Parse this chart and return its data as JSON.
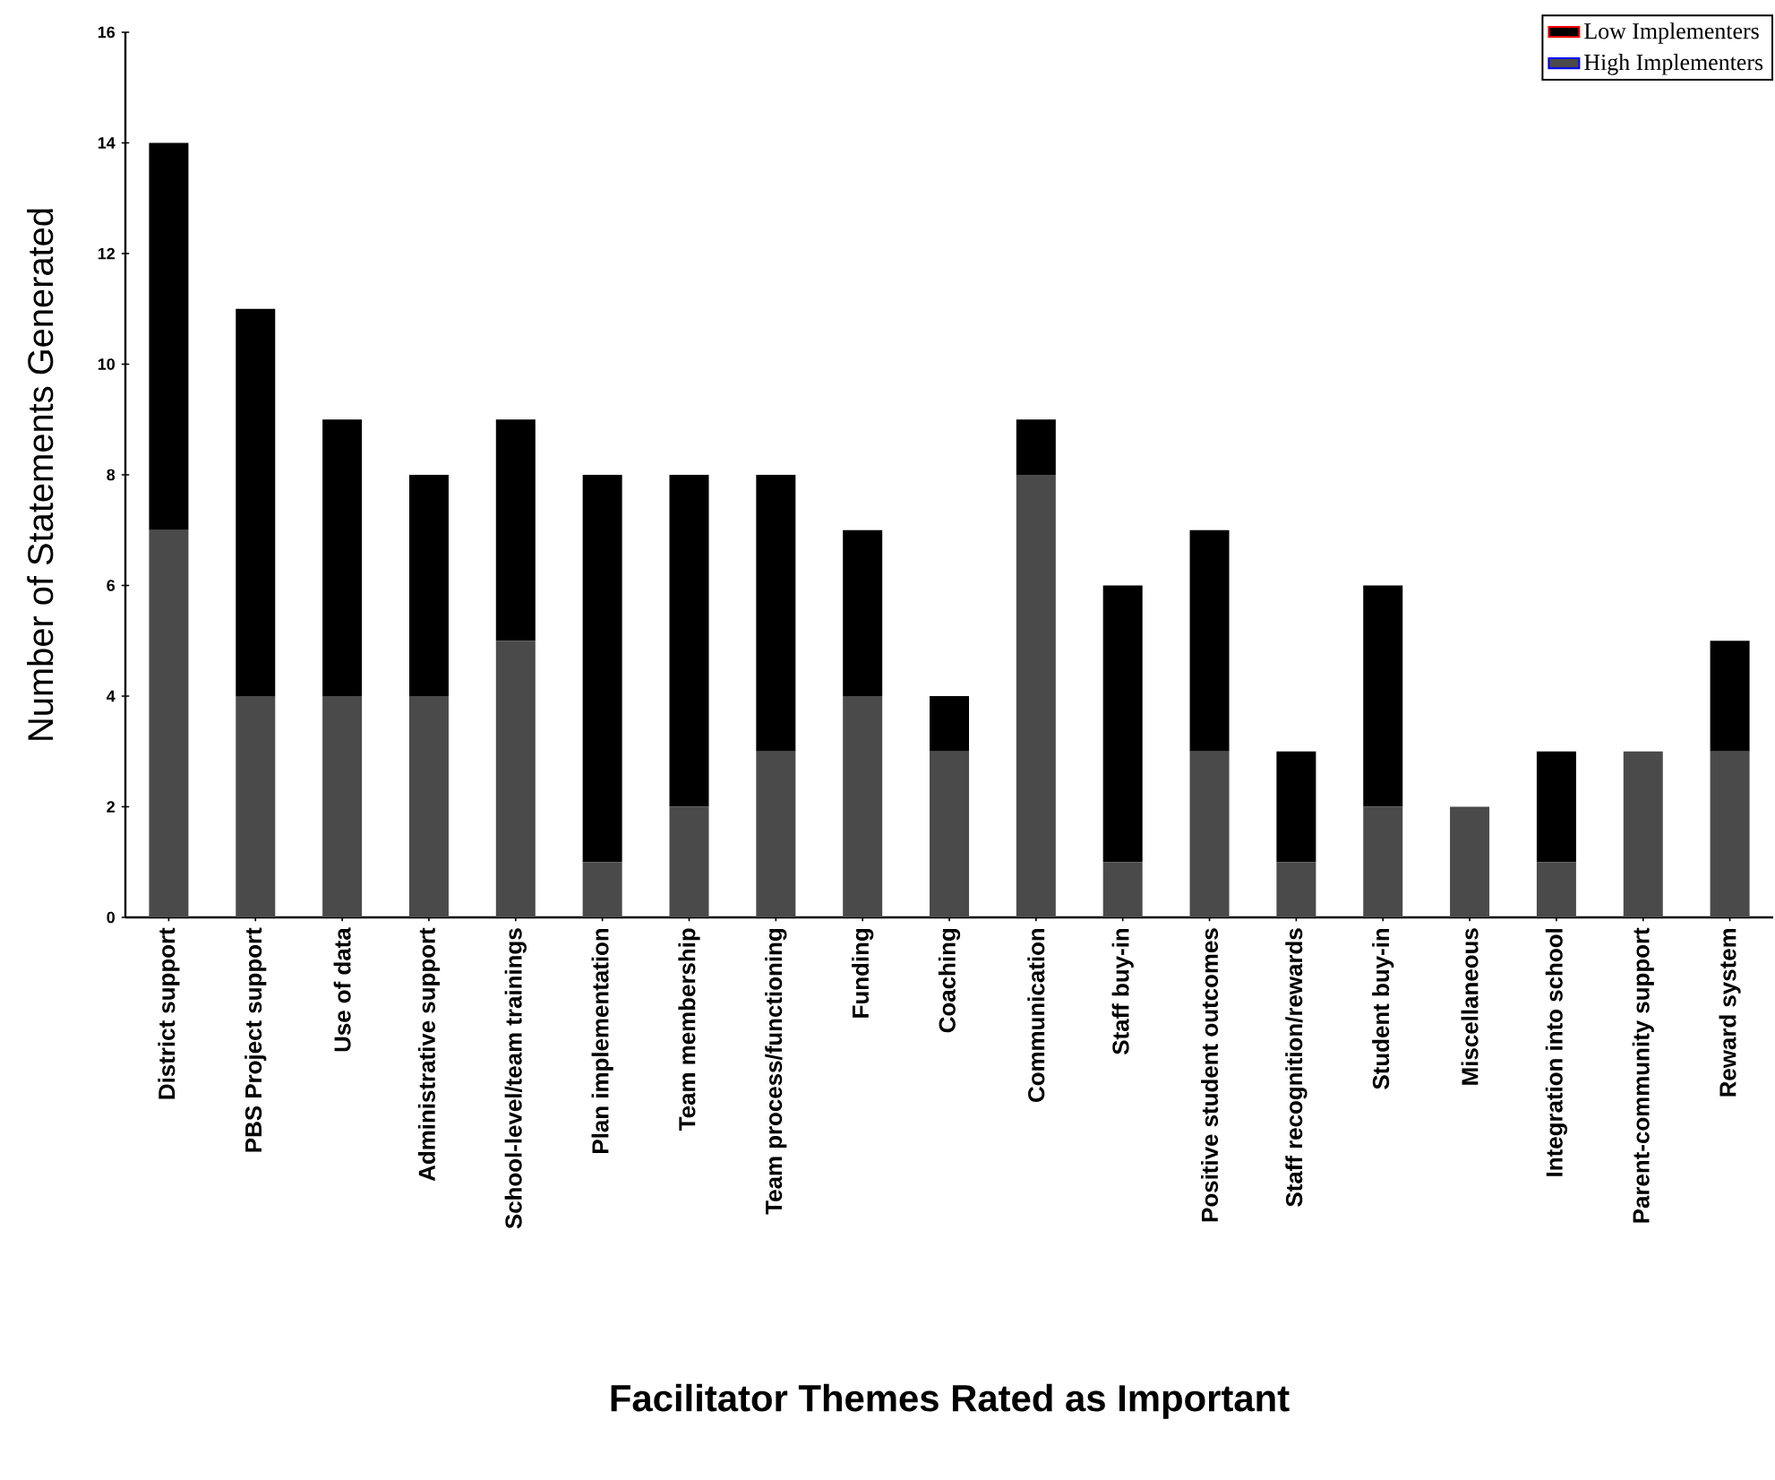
{
  "chart_data": {
    "type": "bar",
    "stacked": true,
    "xlabel": "Facilitator Themes Rated as Important",
    "ylabel": "Number of Statements Generated",
    "categories": [
      "District support",
      "PBS Project support",
      "Use of data",
      "Administrative support",
      "School-level/team trainings",
      "Plan implementation",
      "Team membership",
      "Team process/functioning",
      "Funding",
      "Coaching",
      "Communication",
      "Staff buy-in",
      "Positive student outcomes",
      "Staff recognition/rewards",
      "Student buy-in",
      "Miscellaneous",
      "Integration into school",
      "Parent-community support",
      "Reward system"
    ],
    "series": [
      {
        "name": "High Implementers",
        "color": "#4a4a4a",
        "values": [
          7,
          4,
          4,
          4,
          5,
          1,
          2,
          3,
          4,
          3,
          8,
          1,
          3,
          1,
          2,
          2,
          1,
          3,
          3
        ]
      },
      {
        "name": "Low Implementers",
        "color": "#000000",
        "values": [
          7,
          7,
          5,
          4,
          4,
          7,
          6,
          5,
          3,
          1,
          1,
          5,
          4,
          2,
          4,
          0,
          2,
          0,
          2
        ]
      }
    ],
    "ylim": [
      0,
      16
    ],
    "yticks": [
      0,
      2,
      4,
      6,
      8,
      10,
      12,
      14,
      16
    ],
    "legend": "top right",
    "grid": false
  }
}
